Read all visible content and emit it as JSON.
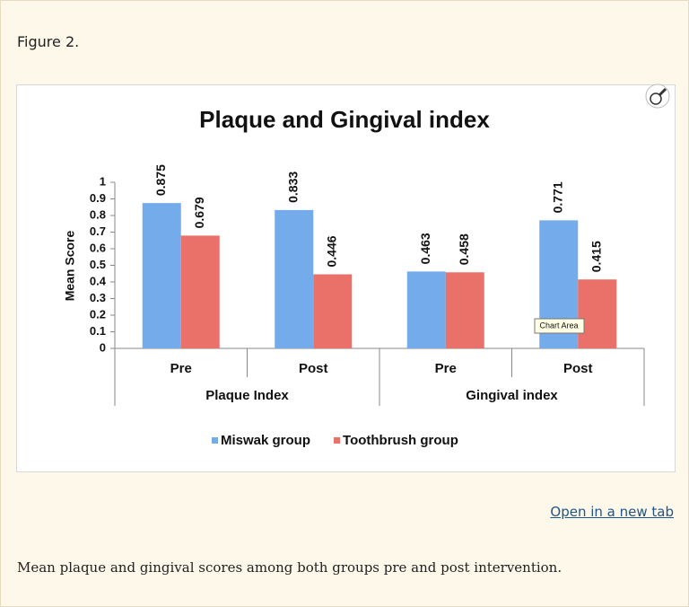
{
  "figure_label": "Figure 2.",
  "link": "Open in a new tab",
  "caption": "Mean plaque and gingival scores among both groups pre and post intervention.",
  "chart_data": {
    "type": "bar",
    "title": "Plaque and Gingival index",
    "y_label": "Mean Score",
    "categories": [
      "Pre",
      "Post",
      "Pre",
      "Post"
    ],
    "groups": [
      "Plaque Index",
      "Gingival index"
    ],
    "series": [
      {
        "name": "Miswak group",
        "color": "#74abea",
        "values": [
          0.875,
          0.833,
          0.463,
          0.771
        ]
      },
      {
        "name": "Toothbrush group",
        "color": "#ea7169",
        "values": [
          0.679,
          0.446,
          0.458,
          0.415
        ]
      }
    ],
    "ylim": [
      0,
      1
    ],
    "yticks": [
      0,
      0.1,
      0.2,
      0.3,
      0.4,
      0.5,
      0.6,
      0.7,
      0.8,
      0.9,
      1
    ],
    "tooltip": "Chart Area"
  }
}
